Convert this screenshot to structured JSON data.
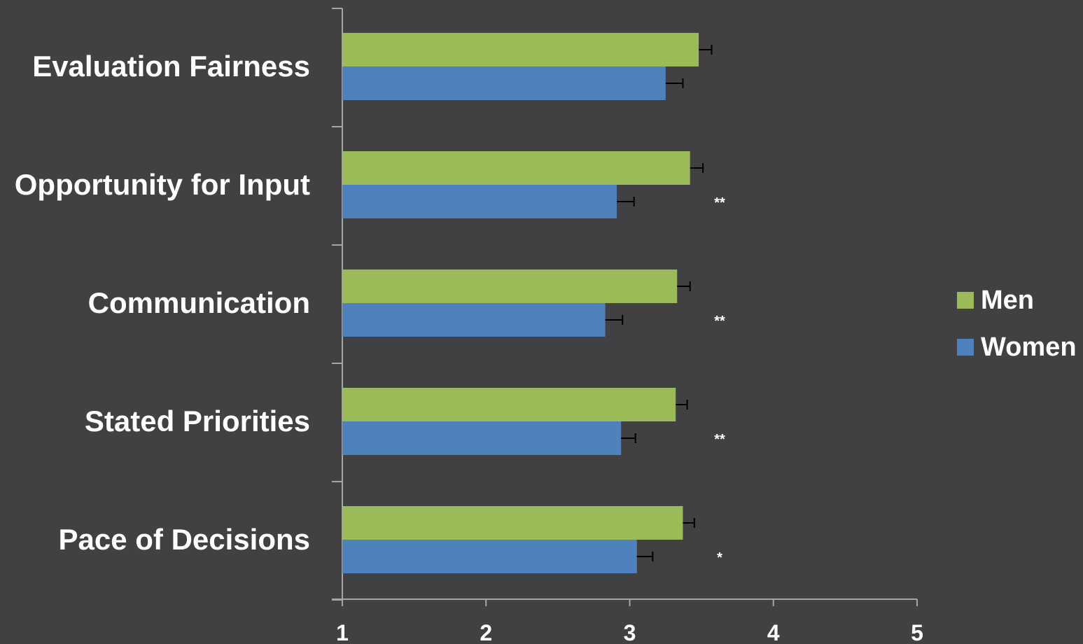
{
  "chart_data": {
    "type": "bar",
    "orientation": "horizontal",
    "title": "",
    "xlabel": "",
    "ylabel": "",
    "categories": [
      "Evaluation Fairness",
      "Opportunity for Input",
      "Communication",
      "Stated Priorities",
      "Pace of Decisions"
    ],
    "series": [
      {
        "name": "Men",
        "color": "#9BBB59",
        "values": [
          3.48,
          3.42,
          3.33,
          3.32,
          3.37
        ],
        "errors": [
          0.09,
          0.09,
          0.09,
          0.08,
          0.08
        ]
      },
      {
        "name": "Women",
        "color": "#4F81BD",
        "values": [
          3.25,
          2.91,
          2.83,
          2.94,
          3.05
        ],
        "errors": [
          0.12,
          0.12,
          0.12,
          0.1,
          0.11
        ]
      }
    ],
    "significance": [
      "",
      "**",
      "**",
      "**",
      "*"
    ],
    "xlim": [
      1,
      5
    ],
    "xticks": [
      "1",
      "2",
      "3",
      "4",
      "5"
    ],
    "grid": false,
    "legend_position": "right"
  }
}
